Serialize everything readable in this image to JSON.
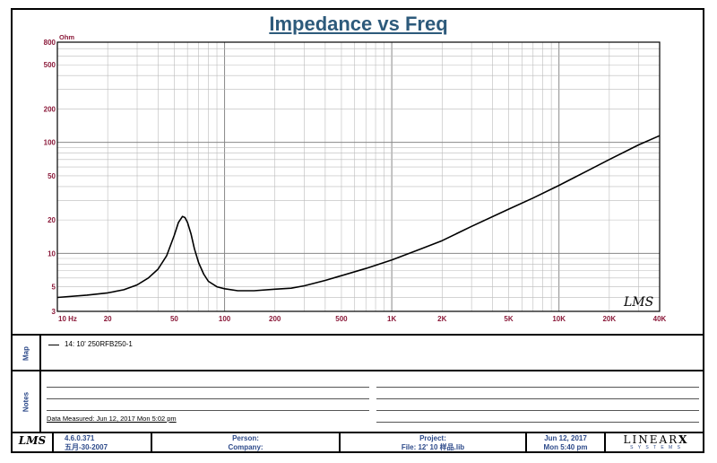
{
  "chart_data": {
    "type": "line",
    "title": "Impedance vs Freq",
    "ylabel": "Ohm",
    "xscale": "log",
    "yscale": "log",
    "xlim": [
      10,
      40000
    ],
    "ylim": [
      3,
      800
    ],
    "xticks": [
      "10 Hz",
      "20",
      "50",
      "100",
      "200",
      "500",
      "1K",
      "2K",
      "5K",
      "10K",
      "20K",
      "40K"
    ],
    "xtick_values": [
      10,
      20,
      50,
      100,
      200,
      500,
      1000,
      2000,
      5000,
      10000,
      20000,
      40000
    ],
    "yticks": [
      "800",
      "500",
      "200",
      "100",
      "50",
      "20",
      "10",
      "5",
      "3"
    ],
    "ytick_values": [
      800,
      500,
      200,
      100,
      50,
      20,
      10,
      5,
      3
    ],
    "grid": true,
    "watermark": "LMS",
    "series": [
      {
        "name": "14: 10' 250RFB250-1",
        "x": [
          10,
          15,
          20,
          25,
          30,
          35,
          40,
          45,
          50,
          53,
          56,
          58,
          60,
          63,
          66,
          70,
          75,
          80,
          90,
          100,
          120,
          150,
          200,
          250,
          300,
          400,
          500,
          700,
          1000,
          1500,
          2000,
          3000,
          5000,
          7000,
          10000,
          15000,
          20000,
          30000,
          40000
        ],
        "y": [
          4.0,
          4.2,
          4.4,
          4.7,
          5.2,
          6.0,
          7.2,
          9.5,
          14.5,
          19,
          21.5,
          21,
          19,
          15,
          11,
          8.2,
          6.5,
          5.6,
          5.0,
          4.8,
          4.6,
          4.6,
          4.75,
          4.85,
          5.1,
          5.7,
          6.3,
          7.3,
          8.7,
          11,
          13,
          17.5,
          25,
          31.5,
          41,
          56,
          70,
          95,
          115
        ]
      }
    ]
  },
  "map": {
    "label": "Map",
    "legend": "14: 10' 250RFB250-1"
  },
  "notes": {
    "label": "Notes",
    "measured": "Data Measured: Jun 12, 2017  Mon  5:02 pm"
  },
  "footer": {
    "logo": "LMS",
    "version": "4.6.0.371",
    "version_date": "五月-30-2007",
    "person": "Person:",
    "company": "Company:",
    "project": "Project:",
    "file": "File: 12' 10  样品.lib",
    "date": "Jun 12, 2017",
    "time": "Mon  5:40 pm",
    "brand": "LINEAR",
    "brand_x": "X",
    "brand_sub": "S Y S T E M S"
  }
}
